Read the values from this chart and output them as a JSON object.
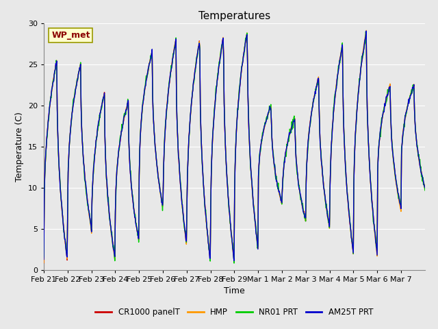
{
  "title": "Temperatures",
  "xlabel": "Time",
  "ylabel": "Temperature (C)",
  "ylim": [
    0,
    30
  ],
  "background_color": "#e8e8e8",
  "plot_bg_color": "#e8e8e8",
  "annotation_text": "WP_met",
  "annotation_color": "#8b0000",
  "annotation_bg": "#ffffcc",
  "annotation_border": "#999900",
  "x_labels": [
    "Feb 21",
    "Feb 22",
    "Feb 23",
    "Feb 24",
    "Feb 25",
    "Feb 26",
    "Feb 27",
    "Feb 28",
    "Feb 29",
    "Mar 1",
    "Mar 2",
    "Mar 3",
    "Mar 4",
    "Mar 5",
    "Mar 6",
    "Mar 7"
  ],
  "series_colors": [
    "#cc0000",
    "#ff9900",
    "#00cc00",
    "#0000cc"
  ],
  "series_lw": [
    1.0,
    1.0,
    1.0,
    1.0
  ],
  "legend_colors": [
    "#cc0000",
    "#ff9900",
    "#00cc00",
    "#0000cc"
  ],
  "legend_labels": [
    "CR1000 panelT",
    "HMP",
    "NR01 PRT",
    "AM25T PRT"
  ],
  "gridcolor": "#ffffff",
  "num_points_per_day": 48,
  "num_days": 16,
  "day_mins": [
    1.0,
    5.0,
    1.2,
    3.5,
    7.5,
    3.0,
    1.0,
    1.0,
    2.5,
    8.0,
    6.0,
    5.2,
    2.0,
    2.0,
    7.5,
    10.0
  ],
  "day_maxs": [
    25.5,
    25.0,
    21.5,
    20.5,
    26.5,
    28.0,
    28.0,
    28.5,
    29.0,
    20.0,
    18.5,
    23.5,
    27.5,
    29.0,
    22.5,
    22.5
  ],
  "hmp_offsets": [
    0.5,
    1.0,
    0.8,
    0.5,
    0.6,
    0.8,
    0.5,
    0.5,
    0.5,
    0.5,
    0.5,
    1.2,
    0.5,
    1.5,
    2.5,
    1.5
  ],
  "figsize": [
    6.4,
    4.8
  ],
  "dpi": 100
}
